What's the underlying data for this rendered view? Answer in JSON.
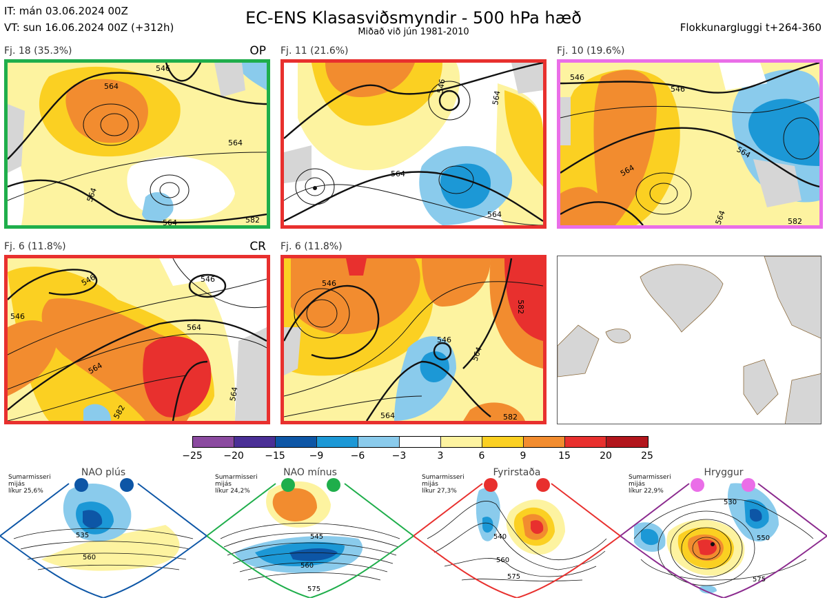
{
  "header": {
    "line1": "IT: mán 03.06.2024 00Z",
    "line2": "VT: sun 16.06.2024 00Z  (+312h)",
    "title": "EC-ENS Klasasviðsmyndir - 500 hPa hæð",
    "subtitle": "Miðað við jún 1981-2010",
    "window": "Flokkunargluggi t+264-360"
  },
  "panels": [
    {
      "label": "Fj. 18 (35.3%)",
      "tag": "OP",
      "border": "#1fae4b"
    },
    {
      "label": "Fj. 11 (21.6%)",
      "tag": "",
      "border": "#e8302e"
    },
    {
      "label": "Fj. 10 (19.6%)",
      "tag": "",
      "border": "#ea6ee8"
    },
    {
      "label": "Fj. 6 (11.8%)",
      "tag": "CR",
      "border": "#e8302e"
    },
    {
      "label": "Fj. 6 (11.8%)",
      "tag": "",
      "border": "#e8302e"
    }
  ],
  "contour_labels": {
    "p0": [
      "546",
      "564",
      "564",
      "564",
      "564",
      "582"
    ],
    "p1": [
      "546",
      "564",
      "564",
      "564"
    ],
    "p2": [
      "546",
      "546",
      "564",
      "564",
      "564",
      "582"
    ],
    "p3": [
      "546",
      "546",
      "564",
      "564",
      "564",
      "582",
      "546"
    ],
    "p4": [
      "546",
      "546",
      "564",
      "564",
      "582",
      "582"
    ]
  },
  "colorbar": {
    "colors": [
      "#8b4aa0",
      "#4a2f96",
      "#0d56a6",
      "#1c98d6",
      "#8acbec",
      "#ffffff",
      "#fdf3a0",
      "#fbd022",
      "#f28c2f",
      "#e8302e",
      "#b2151c"
    ],
    "ticks": [
      "−25",
      "−20",
      "−15",
      "−9",
      "−6",
      "−3",
      "3",
      "6",
      "9",
      "15",
      "20",
      "25"
    ]
  },
  "regimes": [
    {
      "name": "NAO plús",
      "note1": "Sumarmisseri",
      "note2": "mijás",
      "note3": "líkur 25,6%",
      "color": "#0d56a6",
      "labels": [
        "535",
        "560"
      ]
    },
    {
      "name": "NAO mínus",
      "note1": "Sumarmisseri",
      "note2": "mijás",
      "note3": "líkur 24,2%",
      "color": "#1fae4b",
      "labels": [
        "545",
        "560",
        "575"
      ]
    },
    {
      "name": "Fyrirstaða",
      "note1": "Sumarmisseri",
      "note2": "mijás",
      "note3": "líkur 27,3%",
      "color": "#e8302e",
      "labels": [
        "540",
        "560",
        "575"
      ]
    },
    {
      "name": "Hryggur",
      "note1": "Sumarmisseri",
      "note2": "mijás",
      "note3": "líkur 22,9%",
      "color": "#ea6ee8",
      "labels": [
        "530",
        "550",
        "575"
      ]
    }
  ]
}
